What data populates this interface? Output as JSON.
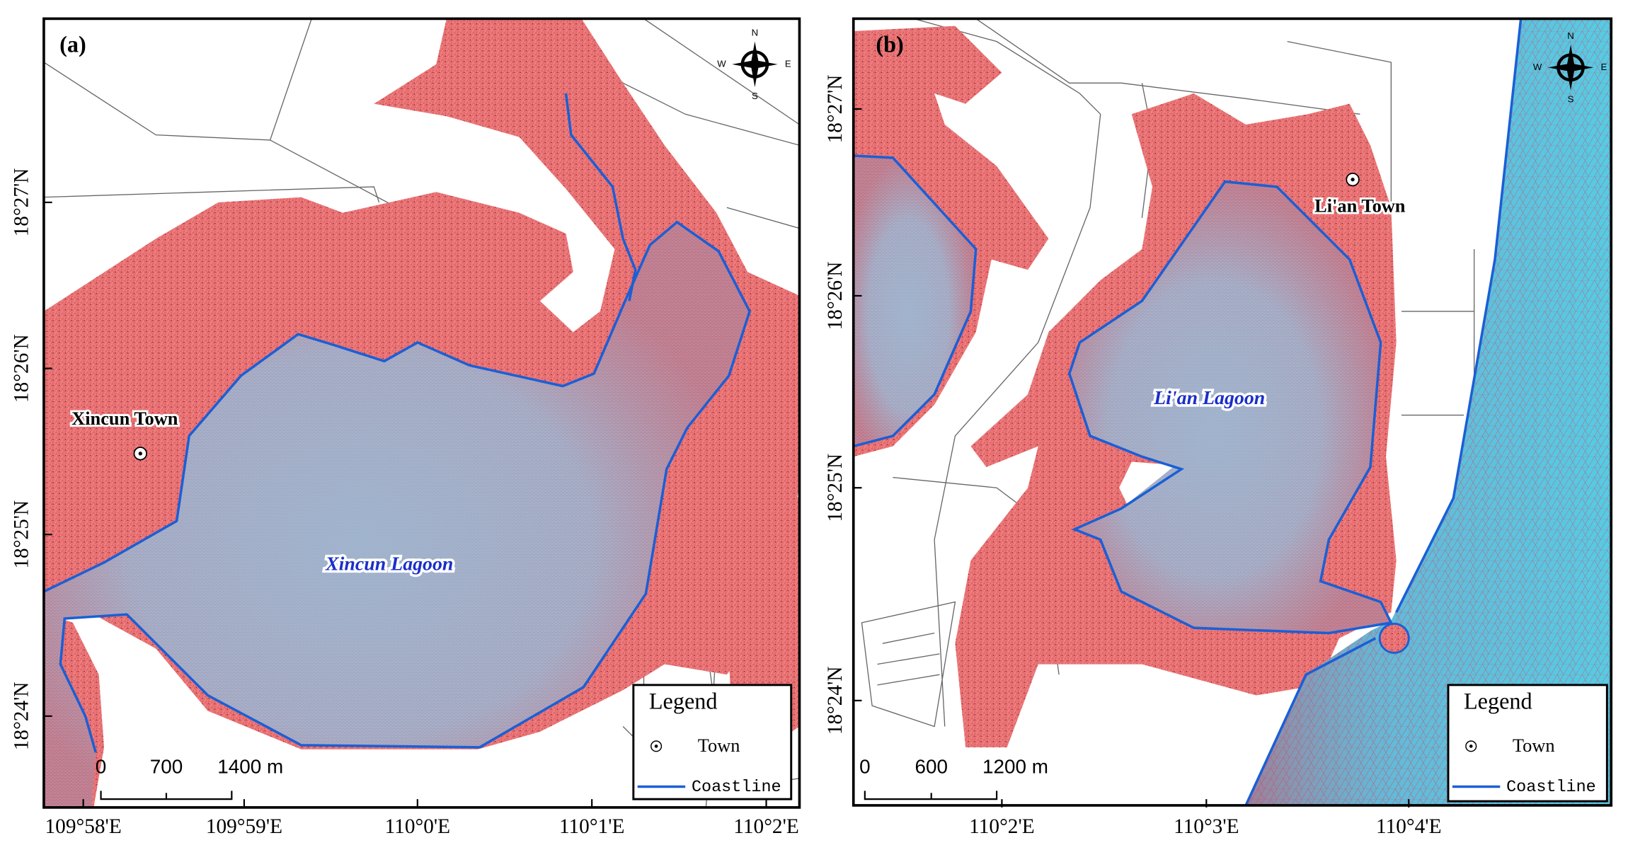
{
  "panels": [
    {
      "label": "(a)",
      "lat_labels": [
        "18°27'N",
        "18°26'N",
        "18°25'N",
        "18°24'N"
      ],
      "lon_labels": [
        "109°58'E",
        "109°59'E",
        "110°0'E",
        "110°1'E",
        "110°2'E"
      ],
      "town": "Xincun Town",
      "lagoon": "Xincun Lagoon",
      "legend": {
        "title": "Legend",
        "items": [
          "Town",
          "Coastline"
        ]
      },
      "scale": [
        "0",
        "700",
        "1400 m"
      ],
      "compass": [
        "N",
        "W",
        "E",
        "S"
      ]
    },
    {
      "label": "(b)",
      "lat_labels": [
        "18°27'N",
        "18°26'N",
        "18°25'N",
        "18°24'N"
      ],
      "lon_labels": [
        "110°2'E",
        "110°3'E",
        "110°4'E"
      ],
      "town": "Li'an Town",
      "lagoon": "Li'an Lagoon",
      "legend": {
        "title": "Legend",
        "items": [
          "Town",
          "Coastline"
        ]
      },
      "scale": [
        "0",
        "600",
        "1200 m"
      ],
      "compass": [
        "N",
        "W",
        "E",
        "S"
      ]
    }
  ]
}
